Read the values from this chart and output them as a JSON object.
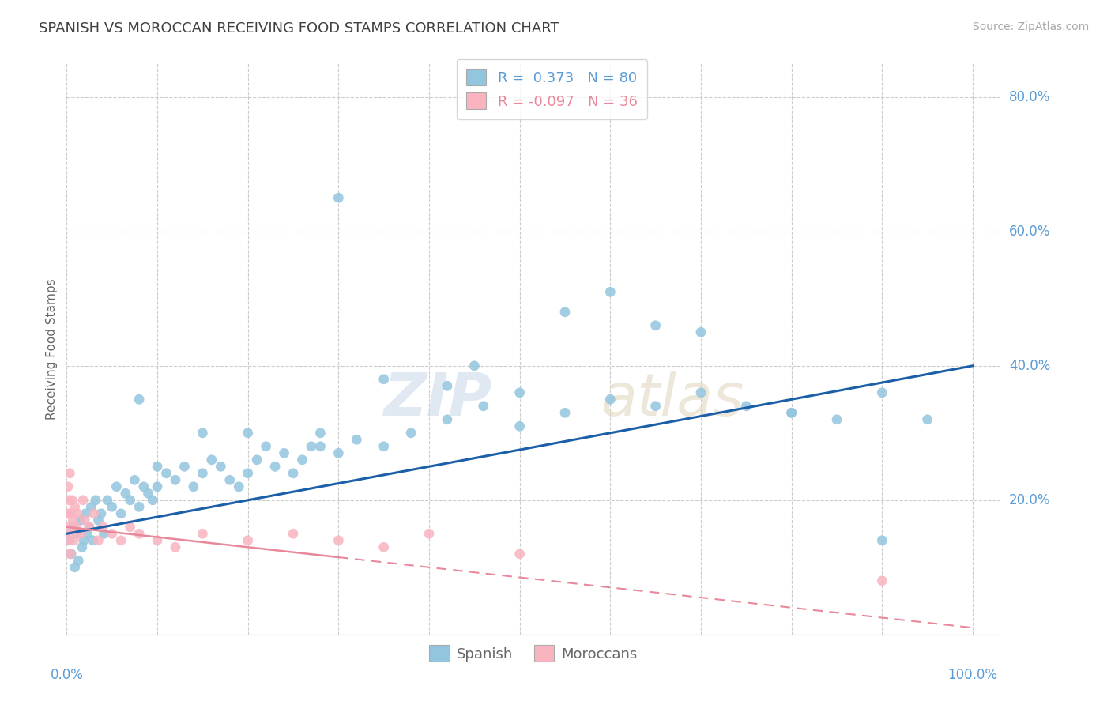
{
  "title": "SPANISH VS MOROCCAN RECEIVING FOOD STAMPS CORRELATION CHART",
  "source": "Source: ZipAtlas.com",
  "ylabel": "Receiving Food Stamps",
  "legend_r_spanish": "0.373",
  "legend_n_spanish": "80",
  "legend_r_moroccan": "-0.097",
  "legend_n_moroccan": "36",
  "spanish_color": "#92c5de",
  "moroccan_color": "#f9b4c0",
  "trend_spanish_color": "#1a5fa8",
  "trend_moroccan_color": "#e8889a",
  "background_color": "#ffffff",
  "grid_color": "#cccccc",
  "title_color": "#404040",
  "axis_label_color": "#5b9bd5",
  "spanish_x": [
    0.3,
    0.5,
    0.7,
    0.9,
    1.1,
    1.3,
    1.5,
    1.7,
    1.9,
    2.1,
    2.3,
    2.5,
    2.7,
    2.9,
    3.2,
    3.5,
    3.8,
    4.1,
    4.5,
    5.0,
    5.5,
    6.0,
    6.5,
    7.0,
    7.5,
    8.0,
    8.5,
    9.0,
    9.5,
    10.0,
    11.0,
    12.0,
    13.0,
    14.0,
    15.0,
    16.0,
    17.0,
    18.0,
    19.0,
    20.0,
    21.0,
    22.0,
    23.0,
    24.0,
    25.0,
    26.0,
    27.0,
    28.0,
    30.0,
    32.0,
    35.0,
    38.0,
    42.0,
    46.0,
    50.0,
    55.0,
    60.0,
    65.0,
    70.0,
    75.0,
    80.0,
    85.0,
    90.0,
    95.0,
    30.0,
    45.0,
    55.0,
    70.0,
    80.0,
    90.0,
    42.0,
    50.0,
    60.0,
    65.0,
    35.0,
    28.0,
    20.0,
    15.0,
    10.0,
    8.0
  ],
  "spanish_y": [
    14.0,
    12.0,
    16.0,
    10.0,
    15.0,
    11.0,
    17.0,
    13.0,
    14.0,
    18.0,
    15.0,
    16.0,
    19.0,
    14.0,
    20.0,
    17.0,
    18.0,
    15.0,
    20.0,
    19.0,
    22.0,
    18.0,
    21.0,
    20.0,
    23.0,
    19.0,
    22.0,
    21.0,
    20.0,
    22.0,
    24.0,
    23.0,
    25.0,
    22.0,
    24.0,
    26.0,
    25.0,
    23.0,
    22.0,
    24.0,
    26.0,
    28.0,
    25.0,
    27.0,
    24.0,
    26.0,
    28.0,
    30.0,
    27.0,
    29.0,
    28.0,
    30.0,
    32.0,
    34.0,
    31.0,
    33.0,
    35.0,
    34.0,
    36.0,
    34.0,
    33.0,
    32.0,
    36.0,
    32.0,
    65.0,
    40.0,
    48.0,
    45.0,
    33.0,
    14.0,
    37.0,
    36.0,
    51.0,
    46.0,
    38.0,
    28.0,
    30.0,
    30.0,
    25.0,
    35.0
  ],
  "moroccan_x": [
    0.1,
    0.15,
    0.2,
    0.25,
    0.3,
    0.35,
    0.4,
    0.45,
    0.5,
    0.6,
    0.7,
    0.8,
    0.9,
    1.0,
    1.2,
    1.5,
    1.8,
    2.0,
    2.5,
    3.0,
    3.5,
    4.0,
    5.0,
    6.0,
    7.0,
    8.0,
    10.0,
    12.0,
    15.0,
    20.0,
    25.0,
    30.0,
    35.0,
    40.0,
    50.0,
    90.0
  ],
  "moroccan_y": [
    18.0,
    22.0,
    14.0,
    20.0,
    16.0,
    24.0,
    12.0,
    18.0,
    15.0,
    20.0,
    17.0,
    14.0,
    19.0,
    16.0,
    18.0,
    15.0,
    20.0,
    17.0,
    16.0,
    18.0,
    14.0,
    16.0,
    15.0,
    14.0,
    16.0,
    15.0,
    14.0,
    13.0,
    15.0,
    14.0,
    15.0,
    14.0,
    13.0,
    15.0,
    12.0,
    8.0
  ],
  "trend_spanish_start_y": 15.0,
  "trend_spanish_end_y": 40.0,
  "trend_moroccan_start_y": 16.0,
  "trend_moroccan_end_y": 1.0,
  "xlim": [
    0,
    103
  ],
  "ylim": [
    0,
    85
  ],
  "ytick_vals": [
    20,
    40,
    60,
    80
  ],
  "ytick_labels": [
    "20.0%",
    "40.0%",
    "60.0%",
    "80.0%"
  ]
}
